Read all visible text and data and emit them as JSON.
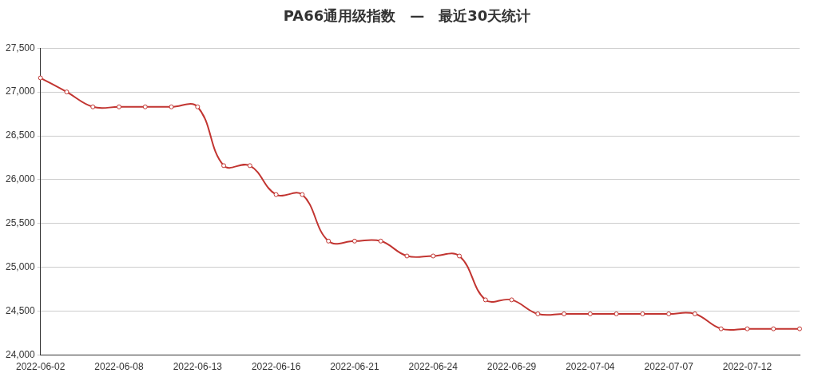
{
  "chart_data": {
    "type": "line",
    "title": "PA66通用级指数　—　最近30天统计",
    "categories": [
      "2022-06-02",
      null,
      null,
      "2022-06-08",
      null,
      null,
      "2022-06-13",
      null,
      null,
      "2022-06-16",
      null,
      null,
      "2022-06-21",
      null,
      null,
      "2022-06-24",
      null,
      null,
      "2022-06-29",
      null,
      null,
      "2022-07-04",
      null,
      null,
      "2022-07-07",
      null,
      null,
      "2022-07-12",
      null,
      null
    ],
    "series": [
      {
        "color": "#c23531",
        "values": [
          27160,
          27000,
          26830,
          26830,
          26830,
          26830,
          26830,
          26160,
          26160,
          25830,
          25830,
          25300,
          25300,
          25300,
          25130,
          25130,
          25130,
          24630,
          24630,
          24470,
          24470,
          24470,
          24470,
          24470,
          24470,
          24470,
          24300,
          24300,
          24300,
          24300
        ]
      }
    ],
    "ylim": [
      24000,
      27500
    ],
    "yticks": [
      {
        "value": 24000,
        "label": "24,000"
      },
      {
        "value": 24500,
        "label": "24,500"
      },
      {
        "value": 25000,
        "label": "25,000"
      },
      {
        "value": 25500,
        "label": "25,500"
      },
      {
        "value": 26000,
        "label": "26,000"
      },
      {
        "value": 26500,
        "label": "26,500"
      },
      {
        "value": 27000,
        "label": "27,000"
      },
      {
        "value": 27500,
        "label": "27,500"
      }
    ],
    "grid": "y",
    "legend": false,
    "marker": "circle",
    "line_style": "solid"
  }
}
